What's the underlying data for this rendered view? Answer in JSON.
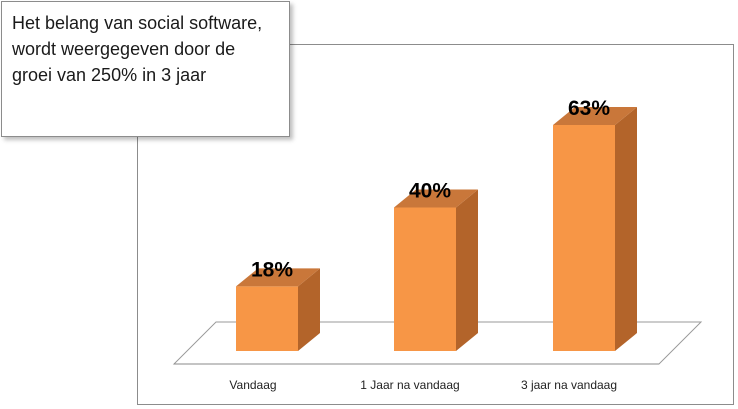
{
  "callout": {
    "text": "Het belang van social software, wordt weergegeven door de groei van 250%  in 3 jaar"
  },
  "chart_data": {
    "type": "bar",
    "categories": [
      "Vandaag",
      "1 Jaar na vandaag",
      "3 jaar na vandaag"
    ],
    "values": [
      18,
      40,
      63
    ],
    "value_labels": [
      "18%",
      "40%",
      "63%"
    ],
    "title": "",
    "xlabel": "",
    "ylabel": "",
    "ylim": [
      0,
      70
    ],
    "grid": false,
    "legend": "none",
    "style": "3d",
    "colors": {
      "front": "#F79646",
      "side": "#B3642A",
      "top": "#C9773A",
      "floor": "#FFFFFF"
    }
  }
}
